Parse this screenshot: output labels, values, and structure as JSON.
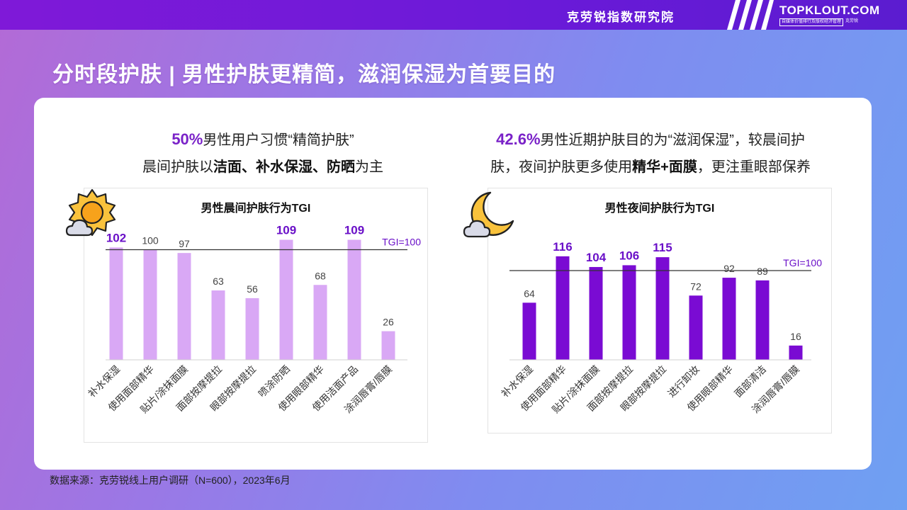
{
  "header": {
    "org_name": "克劳锐指数研究院",
    "logo_brand": "TOPKLOUT.COM",
    "logo_tagline": "自媒体价值排行及版权经济管理",
    "logo_tag_box": "克劳锐"
  },
  "page_title": "分时段护肤 | 男性护肤更精简，滋润保湿为首要目的",
  "left_desc": {
    "line1_highlight": "50%",
    "line1_text": "男性用户习惯“精简护肤”",
    "line2_pre": "晨间护肤以",
    "line2_bold1": "洁面",
    "line2_sep1": "、",
    "line2_bold2": "补水保湿",
    "line2_sep2": "、",
    "line2_bold3": "防晒",
    "line2_post": "为主"
  },
  "right_desc": {
    "line1_highlight": "42.6%",
    "line1_text": "男性近期护肤目的为“滋润保湿”，较晨间护",
    "line2_pre": "肤，夜间护肤更多使用",
    "line2_bold1": "精华+面膜",
    "line2_post": "，更注重眼部保养"
  },
  "chart_data": [
    {
      "type": "bar",
      "title": "男性晨间护肤行为TGI",
      "categories": [
        "补水保湿",
        "使用面部精华",
        "贴片/涂抹面膜",
        "面部按摩提拉",
        "眼部按摩提拉",
        "喷涂防晒",
        "使用眼部精华",
        "使用洁面产品",
        "涂润唇膏/唇膜"
      ],
      "values": [
        102,
        100,
        97,
        63,
        56,
        109,
        68,
        109,
        26
      ],
      "highlighted": [
        true,
        false,
        false,
        false,
        false,
        true,
        false,
        true,
        false
      ],
      "reference_line": {
        "value": 100,
        "label": "TGI=100"
      },
      "ylim": [
        0,
        120
      ],
      "grid": false,
      "bar_color": "#d9a8f5",
      "highlight_label_color": "#6a10c8"
    },
    {
      "type": "bar",
      "title": "男性夜间护肤行为TGI",
      "categories": [
        "补水保湿",
        "使用面部精华",
        "贴片/涂抹面膜",
        "面部按摩提拉",
        "眼部按摩提拉",
        "进行卸妆",
        "使用眼部精华",
        "面部清洁",
        "涂润唇膏/唇膜"
      ],
      "values": [
        64,
        116,
        104,
        106,
        115,
        72,
        92,
        89,
        16
      ],
      "highlighted": [
        false,
        true,
        true,
        true,
        true,
        false,
        false,
        false,
        false
      ],
      "reference_line": {
        "value": 100,
        "label": "TGI=100"
      },
      "ylim": [
        0,
        120
      ],
      "grid": false,
      "bar_color": "#7a0bd3",
      "highlight_label_color": "#6a10c8"
    }
  ],
  "icons": {
    "morning": "sun-cloud-icon",
    "night": "moon-cloud-icon"
  },
  "colors": {
    "accent": "#7a22c8",
    "topbar": "#7f19d8"
  },
  "source": "数据来源：克劳锐线上用户调研（N=600），2023年6月"
}
